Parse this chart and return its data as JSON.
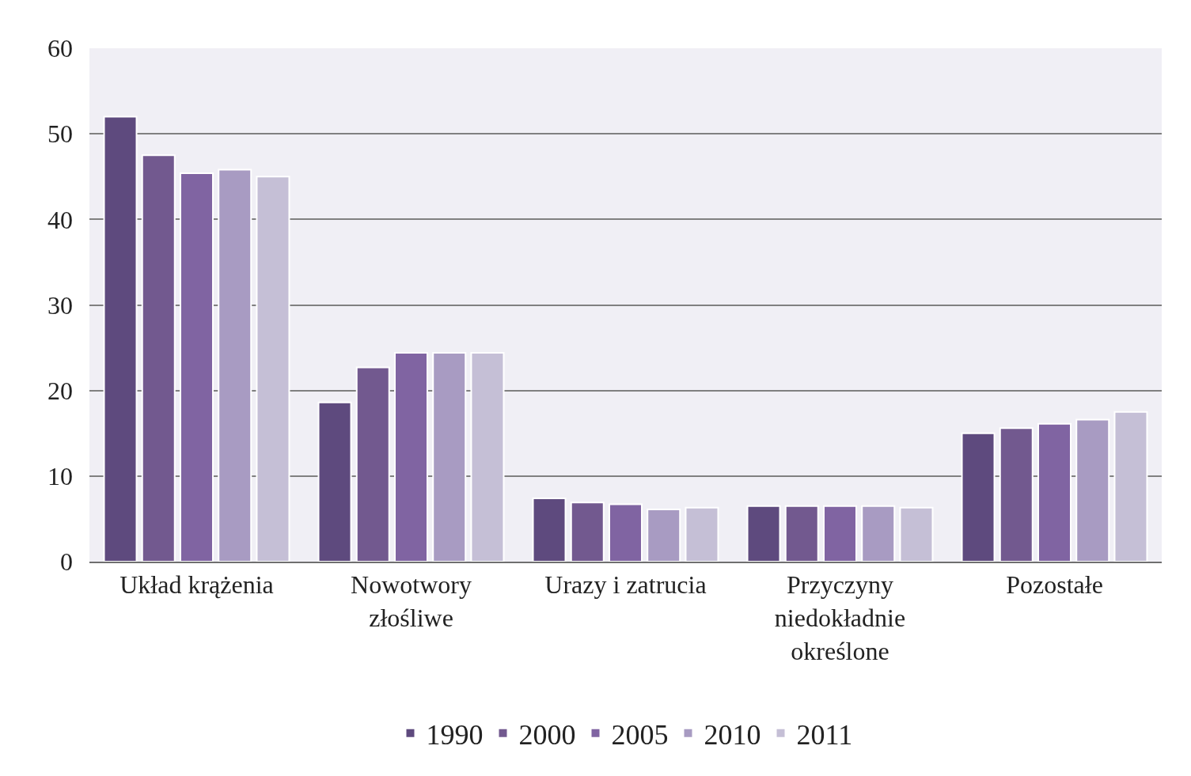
{
  "chart_data": {
    "type": "bar",
    "categories": [
      "Układ krążenia",
      "Nowotwory złośliwe",
      "Urazy i zatrucia",
      "Przyczyny niedokładnie określone",
      "Pozostałe"
    ],
    "series": [
      {
        "name": "1990",
        "color": "#5e4a7e",
        "values": [
          52.0,
          18.6,
          7.4,
          6.5,
          15.0
        ]
      },
      {
        "name": "2000",
        "color": "#72598f",
        "values": [
          47.5,
          22.7,
          6.9,
          6.5,
          15.6
        ]
      },
      {
        "name": "2005",
        "color": "#8064a2",
        "values": [
          45.4,
          24.4,
          6.7,
          6.5,
          16.1
        ]
      },
      {
        "name": "2010",
        "color": "#a89bc2",
        "values": [
          45.8,
          24.4,
          6.1,
          6.5,
          16.6
        ]
      },
      {
        "name": "2011",
        "color": "#c5bfd6",
        "values": [
          45.0,
          24.4,
          6.3,
          6.3,
          17.5
        ]
      }
    ],
    "ylim": [
      0,
      60
    ],
    "yticks": [
      0,
      10,
      20,
      30,
      40,
      50,
      60
    ],
    "grid": "y",
    "legend": "bottom"
  }
}
